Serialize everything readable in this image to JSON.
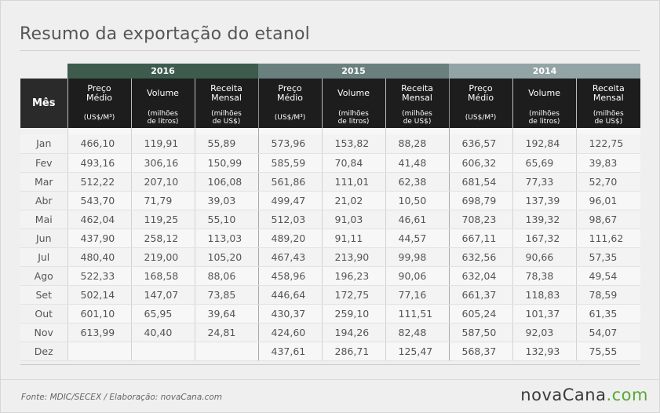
{
  "title": "Resumo da exportação do etanol",
  "header": {
    "mes_label": "Mês",
    "years": [
      "2016",
      "2015",
      "2014"
    ],
    "columns": [
      {
        "line1": "Preço",
        "line2": "Médio",
        "unit": "(US$/M³)"
      },
      {
        "line1": "Volume",
        "line2": "",
        "unit1": "(milhões",
        "unit2": "de litros)"
      },
      {
        "line1": "Receita",
        "line2": "Mensal",
        "unit1": "(milhões",
        "unit2": "de US$)"
      }
    ]
  },
  "rows": [
    {
      "mes": "Jan",
      "v": [
        "466,10",
        "119,91",
        "55,89",
        "573,96",
        "153,82",
        "88,28",
        "636,57",
        "192,84",
        "122,75"
      ]
    },
    {
      "mes": "Fev",
      "v": [
        "493,16",
        "306,16",
        "150,99",
        "585,59",
        "70,84",
        "41,48",
        "606,32",
        "65,69",
        "39,83"
      ]
    },
    {
      "mes": "Mar",
      "v": [
        "512,22",
        "207,10",
        "106,08",
        "561,86",
        "111,01",
        "62,38",
        "681,54",
        "77,33",
        "52,70"
      ]
    },
    {
      "mes": "Abr",
      "v": [
        "543,70",
        "71,79",
        "39,03",
        "499,47",
        "21,02",
        "10,50",
        "698,79",
        "137,39",
        "96,01"
      ]
    },
    {
      "mes": "Mai",
      "v": [
        "462,04",
        "119,25",
        "55,10",
        "512,03",
        "91,03",
        "46,61",
        "708,23",
        "139,32",
        "98,67"
      ]
    },
    {
      "mes": "Jun",
      "v": [
        "437,90",
        "258,12",
        "113,03",
        "489,20",
        "91,11",
        "44,57",
        "667,11",
        "167,32",
        "111,62"
      ]
    },
    {
      "mes": "Jul",
      "v": [
        "480,40",
        "219,00",
        "105,20",
        "467,43",
        "213,90",
        "99,98",
        "632,56",
        "90,66",
        "57,35"
      ]
    },
    {
      "mes": "Ago",
      "v": [
        "522,33",
        "168,58",
        "88,06",
        "458,96",
        "196,23",
        "90,06",
        "632,04",
        "78,38",
        "49,54"
      ]
    },
    {
      "mes": "Set",
      "v": [
        "502,14",
        "147,07",
        "73,85",
        "446,64",
        "172,75",
        "77,16",
        "661,37",
        "118,83",
        "78,59"
      ]
    },
    {
      "mes": "Out",
      "v": [
        "601,10",
        "65,95",
        "39,64",
        "430,37",
        "259,10",
        "111,51",
        "605,24",
        "101,37",
        "61,35"
      ]
    },
    {
      "mes": "Nov",
      "v": [
        "613,99",
        "40,40",
        "24,81",
        "424,60",
        "194,26",
        "82,48",
        "587,50",
        "92,03",
        "54,07"
      ]
    },
    {
      "mes": "Dez",
      "v": [
        "",
        "",
        "",
        "437,61",
        "286,71",
        "125,47",
        "568,37",
        "132,93",
        "75,55"
      ]
    }
  ],
  "footer": "Fonte: MDIC/SECEX  / Elaboração: novaCana.com",
  "logo": {
    "main": "novaCana",
    "dot": ".",
    "tld": "com"
  }
}
